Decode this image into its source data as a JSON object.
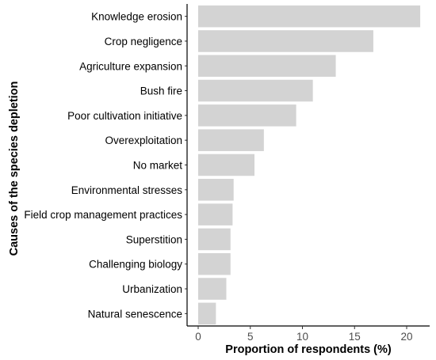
{
  "chart_data": {
    "type": "bar",
    "orientation": "horizontal",
    "categories": [
      "Knowledge erosion",
      "Crop negligence",
      "Agriculture expansion",
      "Bush fire",
      "Poor cultivation initiative",
      "Overexploitation",
      "No market",
      "Environmental stresses",
      "Field crop management practices",
      "Superstition",
      "Challenging biology",
      "Urbanization",
      "Natural senescence"
    ],
    "values": [
      21.3,
      16.8,
      13.2,
      11.0,
      9.4,
      6.3,
      5.4,
      3.4,
      3.3,
      3.1,
      3.1,
      2.7,
      1.7
    ],
    "xlabel": "Proportion of respondents (%)",
    "ylabel": "Causes of the species depletion",
    "xlim": [
      -1,
      22
    ],
    "xticks": [
      0,
      5,
      10,
      15,
      20
    ],
    "grid": false,
    "bar_color": "#d3d3d3"
  }
}
